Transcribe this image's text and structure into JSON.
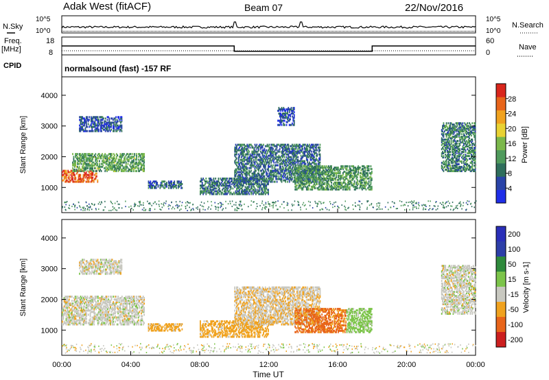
{
  "header": {
    "title": "Adak West (fitACF)",
    "beam": "Beam 07",
    "date": "22/Nov/2016"
  },
  "side_labels": {
    "nsky": "N.Sky",
    "freq": "Freq.",
    "freq_unit": "[MHz]",
    "cpid": "CPID",
    "nsearch": "N.Search",
    "nave": "Nave"
  },
  "cpid_text": "normalsound (fast) -157 RF",
  "colors": {
    "power": [
      "#1f2ee8",
      "#2a44a8",
      "#2f6e5c",
      "#4f9a5c",
      "#7bb84b",
      "#e9d233",
      "#f0a21f",
      "#e8651a",
      "#d9261c"
    ],
    "velocity": [
      "#cc1f1f",
      "#e8651a",
      "#f0a21f",
      "#c8c8c0",
      "#7cc44a",
      "#2f8a3c",
      "#2d3fa8",
      "#2a2fb8"
    ]
  },
  "chart_data": [
    {
      "type": "line",
      "name": "noise-panel",
      "y_left_ticks": [
        "10^5",
        "10^0"
      ],
      "y_right_ticks": [
        "10^5",
        "10^0"
      ],
      "x": [
        "00:00",
        "10:00",
        "14:00",
        "24:00"
      ],
      "series": [
        {
          "name": "N.Sky",
          "values": [
            1,
            10,
            8,
            1
          ]
        }
      ]
    },
    {
      "type": "line",
      "name": "frequency-nave-panel",
      "y_left_ticks": [
        "18",
        "8"
      ],
      "y_right_ticks": [
        "60",
        "0"
      ],
      "series": [
        {
          "name": "Freq.",
          "segments": [
            {
              "from": "00:00",
              "to": "10:00",
              "value": 13
            },
            {
              "from": "10:00",
              "to": "18:00",
              "value": 10
            },
            {
              "from": "18:00",
              "to": "24:00",
              "value": 13
            }
          ]
        },
        {
          "name": "Nave",
          "values": [
            20,
            20,
            20
          ]
        }
      ]
    },
    {
      "type": "heatmap",
      "title": "Power",
      "xlabel": "",
      "ylabel": "Slant Range [km]",
      "x_ticks": [
        "00:00",
        "04:00",
        "08:00",
        "12:00",
        "16:00",
        "20:00",
        "00:00"
      ],
      "x_range_hours": [
        0,
        24
      ],
      "y_ticks": [
        1000,
        2000,
        3000,
        4000
      ],
      "ylim": [
        180,
        4600
      ],
      "colorbar_label": "Power [dB]",
      "colorbar_ticks": [
        4,
        8,
        12,
        16,
        20,
        24,
        28
      ],
      "colorbar_range": [
        0,
        32
      ],
      "echo_regions": [
        {
          "t0": 0.0,
          "t1": 2.1,
          "r0": 1150,
          "r1": 1550,
          "level": 27
        },
        {
          "t0": 0.6,
          "t1": 4.8,
          "r0": 1500,
          "r1": 2100,
          "level": 13
        },
        {
          "t0": 1.0,
          "t1": 3.5,
          "r0": 2800,
          "r1": 3300,
          "level": 6
        },
        {
          "t0": 5.0,
          "t1": 7.0,
          "r0": 950,
          "r1": 1200,
          "level": 7
        },
        {
          "t0": 8.0,
          "t1": 12.0,
          "r0": 750,
          "r1": 1300,
          "level": 9
        },
        {
          "t0": 10.0,
          "t1": 15.0,
          "r0": 1150,
          "r1": 2400,
          "level": 8
        },
        {
          "t0": 13.5,
          "t1": 18.0,
          "r0": 900,
          "r1": 1700,
          "level": 12
        },
        {
          "t0": 12.5,
          "t1": 13.5,
          "r0": 3000,
          "r1": 3600,
          "level": 6
        },
        {
          "t0": 22.0,
          "t1": 24.0,
          "r0": 1500,
          "r1": 3100,
          "level": 10
        }
      ]
    },
    {
      "type": "heatmap",
      "title": "Velocity",
      "xlabel": "Time UT",
      "ylabel": "Slant Range [km]",
      "x_ticks": [
        "00:00",
        "04:00",
        "08:00",
        "12:00",
        "16:00",
        "20:00",
        "00:00"
      ],
      "x_range_hours": [
        0,
        24
      ],
      "y_ticks": [
        1000,
        2000,
        3000,
        4000
      ],
      "ylim": [
        180,
        4600
      ],
      "colorbar_label": "Velocity [m s-1]",
      "colorbar_ticks": [
        -200,
        -100,
        -50,
        -15,
        15,
        50,
        100,
        200
      ],
      "echo_regions": [
        {
          "t0": 0.0,
          "t1": 4.8,
          "r0": 1150,
          "r1": 2100,
          "velocity": 0
        },
        {
          "t0": 1.0,
          "t1": 3.5,
          "r0": 2800,
          "r1": 3300,
          "velocity": 0
        },
        {
          "t0": 5.0,
          "t1": 7.0,
          "r0": 950,
          "r1": 1200,
          "velocity": -30
        },
        {
          "t0": 8.0,
          "t1": 12.0,
          "r0": 750,
          "r1": 1300,
          "velocity": -30
        },
        {
          "t0": 10.0,
          "t1": 15.0,
          "r0": 1150,
          "r1": 2400,
          "velocity": -10
        },
        {
          "t0": 13.5,
          "t1": 16.5,
          "r0": 900,
          "r1": 1700,
          "velocity": -60
        },
        {
          "t0": 16.5,
          "t1": 18.0,
          "r0": 900,
          "r1": 1700,
          "velocity": 30
        },
        {
          "t0": 22.0,
          "t1": 24.0,
          "r0": 1500,
          "r1": 3100,
          "velocity": 0
        }
      ]
    }
  ]
}
